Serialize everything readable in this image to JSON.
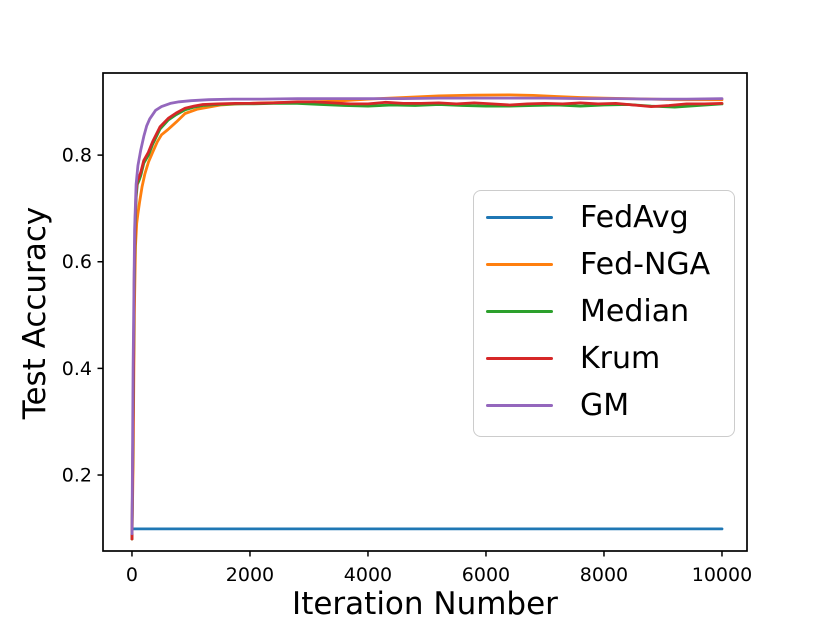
{
  "chart_data": {
    "type": "line",
    "title": "",
    "xlabel": "Iteration Number",
    "ylabel": "Test Accuracy",
    "xlim": [
      -491,
      10424
    ],
    "ylim": [
      0.0575,
      0.954
    ],
    "x_ticks": [
      0,
      2000,
      4000,
      6000,
      8000,
      10000
    ],
    "y_ticks": [
      0.2,
      0.4,
      0.6,
      0.8
    ],
    "grid": false,
    "legend_location": "center right",
    "axis_color": "#000000",
    "line_width": 2.8,
    "series": [
      {
        "name": "FedAvg",
        "color": "#1f77b4",
        "x": [
          0,
          10000
        ],
        "y": [
          0.099,
          0.099
        ]
      },
      {
        "name": "Fed-NGA",
        "color": "#ff7f0e",
        "x": [
          0,
          20,
          40,
          60,
          80,
          100,
          130,
          170,
          220,
          280,
          350,
          430,
          500,
          610,
          750,
          900,
          1100,
          1300,
          1500,
          1800,
          2200,
          2800,
          3400,
          4000,
          4600,
          5200,
          5800,
          6400,
          6800,
          7200,
          7600,
          8000,
          8400,
          8800,
          9200,
          9600,
          10000
        ],
        "y": [
          0.08,
          0.22,
          0.5,
          0.63,
          0.672,
          0.69,
          0.712,
          0.74,
          0.765,
          0.787,
          0.805,
          0.825,
          0.838,
          0.848,
          0.862,
          0.878,
          0.886,
          0.89,
          0.894,
          0.896,
          0.898,
          0.899,
          0.901,
          0.905,
          0.908,
          0.911,
          0.9125,
          0.913,
          0.912,
          0.91,
          0.908,
          0.907,
          0.906,
          0.905,
          0.904,
          0.904,
          0.904
        ]
      },
      {
        "name": "Median",
        "color": "#2ca02c",
        "x": [
          0,
          20,
          40,
          55,
          70,
          90,
          120,
          150,
          200,
          280,
          350,
          475,
          615,
          750,
          900,
          1050,
          1200,
          1450,
          1750,
          2000,
          2400,
          2800,
          3200,
          3600,
          4000,
          4400,
          4800,
          5200,
          5600,
          6000,
          6400,
          6800,
          7200,
          7600,
          8000,
          8400,
          8800,
          9200,
          9600,
          10000
        ],
        "y": [
          0.08,
          0.29,
          0.56,
          0.665,
          0.72,
          0.745,
          0.752,
          0.762,
          0.785,
          0.8,
          0.82,
          0.849,
          0.866,
          0.876,
          0.885,
          0.89,
          0.893,
          0.895,
          0.896,
          0.896,
          0.897,
          0.897,
          0.895,
          0.893,
          0.892,
          0.894,
          0.893,
          0.895,
          0.893,
          0.892,
          0.892,
          0.893,
          0.894,
          0.892,
          0.894,
          0.895,
          0.892,
          0.89,
          0.893,
          0.896
        ]
      },
      {
        "name": "Krum",
        "color": "#d62728",
        "x": [
          0,
          20,
          40,
          55,
          70,
          90,
          120,
          150,
          200,
          276,
          350,
          475,
          615,
          750,
          900,
          1050,
          1200,
          1450,
          1750,
          2000,
          2400,
          2800,
          3100,
          3400,
          3700,
          4000,
          4300,
          4600,
          4900,
          5200,
          5500,
          5800,
          6100,
          6400,
          6700,
          7000,
          7300,
          7600,
          7900,
          8200,
          8500,
          8800,
          9100,
          9400,
          9700,
          10000
        ],
        "y": [
          0.08,
          0.3,
          0.58,
          0.68,
          0.73,
          0.752,
          0.758,
          0.768,
          0.79,
          0.805,
          0.825,
          0.853,
          0.869,
          0.879,
          0.888,
          0.892,
          0.895,
          0.896,
          0.897,
          0.897,
          0.898,
          0.9,
          0.9,
          0.898,
          0.896,
          0.896,
          0.899,
          0.897,
          0.897,
          0.898,
          0.896,
          0.898,
          0.896,
          0.894,
          0.896,
          0.897,
          0.896,
          0.898,
          0.896,
          0.897,
          0.894,
          0.891,
          0.893,
          0.896,
          0.896,
          0.897
        ]
      },
      {
        "name": "GM",
        "color": "#9467bd",
        "x": [
          0,
          20,
          45,
          70,
          100,
          150,
          200,
          250,
          300,
          400,
          500,
          650,
          800,
          1000,
          1300,
          1700,
          2200,
          2800,
          3400,
          4000,
          4600,
          5200,
          5800,
          6400,
          7000,
          7600,
          8200,
          8800,
          9400,
          10000
        ],
        "y": [
          0.09,
          0.4,
          0.66,
          0.745,
          0.78,
          0.81,
          0.835,
          0.855,
          0.868,
          0.884,
          0.891,
          0.897,
          0.9,
          0.902,
          0.904,
          0.905,
          0.905,
          0.906,
          0.906,
          0.906,
          0.906,
          0.907,
          0.907,
          0.907,
          0.907,
          0.906,
          0.906,
          0.905,
          0.905,
          0.906
        ]
      }
    ]
  }
}
